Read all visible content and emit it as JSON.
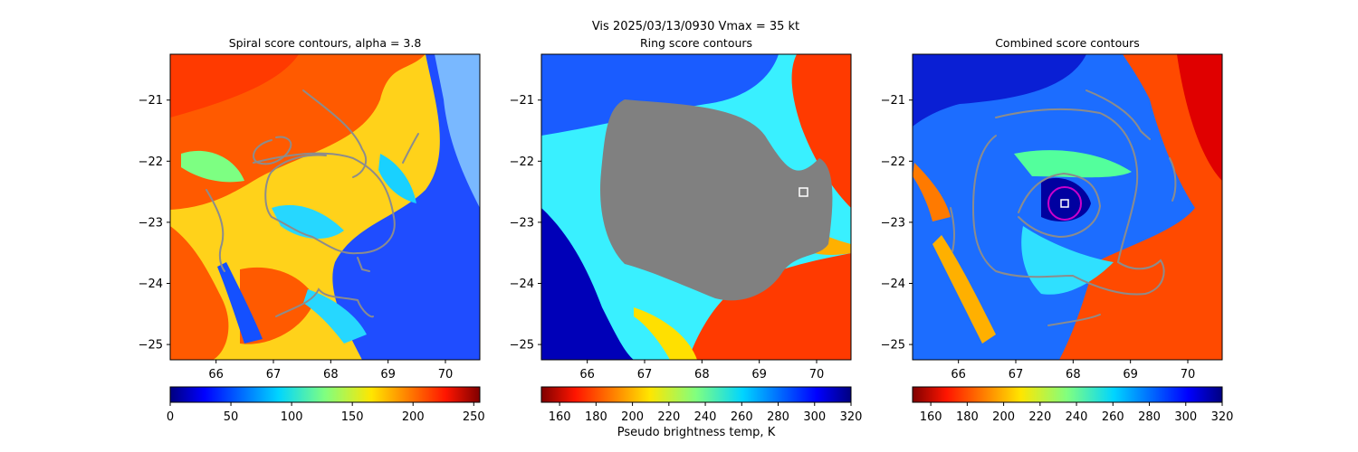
{
  "figure": {
    "suptitle": "Vis  2025/03/13/0930    Vmax = 35 kt"
  },
  "chart_data": [
    {
      "type": "heatmap",
      "title": "Spiral score contours, alpha =  3.8",
      "xticks": [
        66,
        67,
        68,
        69,
        70
      ],
      "yticks": [
        -21,
        -22,
        -23,
        -24,
        -25
      ],
      "xlim": [
        65.2,
        70.6
      ],
      "ylim": [
        -25.25,
        -20.25
      ],
      "colormap": "jet",
      "colorbar": {
        "ticks": [
          0,
          50,
          100,
          150,
          200,
          250
        ],
        "range": [
          0,
          255
        ],
        "reversed": false,
        "label": ""
      },
      "contour_color": "#888888",
      "markers": []
    },
    {
      "type": "heatmap",
      "title": "Ring score contours",
      "xticks": [
        66,
        67,
        68,
        69,
        70
      ],
      "yticks": [
        -21,
        -22,
        -23,
        -24,
        -25
      ],
      "xlim": [
        65.2,
        70.6
      ],
      "ylim": [
        -25.25,
        -20.25
      ],
      "colormap": "jet_r",
      "colorbar": {
        "ticks": [
          160,
          180,
          200,
          220,
          240,
          260,
          280,
          300,
          320
        ],
        "range": [
          150,
          320
        ],
        "reversed": true,
        "label": "Pseudo brightness temp, K"
      },
      "masked_region_color": "#808080",
      "markers": [
        {
          "shape": "square",
          "x": 69.8,
          "y": -22.5,
          "color": "#ffffff"
        }
      ]
    },
    {
      "type": "heatmap",
      "title": "Combined score contours",
      "xticks": [
        66,
        67,
        68,
        69,
        70
      ],
      "yticks": [
        -21,
        -22,
        -23,
        -24,
        -25
      ],
      "xlim": [
        65.2,
        70.6
      ],
      "ylim": [
        -25.25,
        -20.25
      ],
      "colormap": "jet_r",
      "colorbar": {
        "ticks": [
          160,
          180,
          200,
          220,
          240,
          260,
          280,
          300,
          320
        ],
        "range": [
          150,
          320
        ],
        "reversed": true,
        "label": ""
      },
      "contour_color": "#888888",
      "markers": [
        {
          "shape": "square",
          "x": 67.8,
          "y": -22.7,
          "color": "#ffffff"
        },
        {
          "shape": "circle",
          "x": 67.8,
          "y": -22.7,
          "color": "#cc00cc"
        }
      ]
    }
  ]
}
